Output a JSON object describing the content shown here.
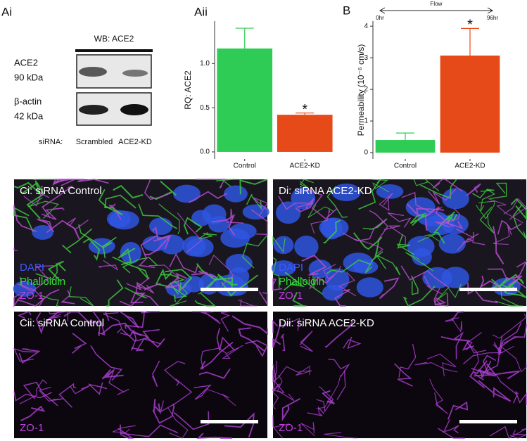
{
  "blot": {
    "panel": "Ai",
    "title": "WB: ACE2",
    "rows": [
      {
        "name": "ACE2",
        "size": "90 kDa"
      },
      {
        "name": "β-actin",
        "size": "42 kDa"
      }
    ],
    "lane_label": "siRNA:",
    "lanes": [
      "Scrambled",
      "ACE2-KD"
    ]
  },
  "chart_data": [
    {
      "type": "bar",
      "panel": "Aii",
      "ylabel": "RQ: ACE2",
      "categories": [
        "Control",
        "ACE2-KD"
      ],
      "values": [
        1.17,
        0.42
      ],
      "errors": [
        0.23,
        0.02
      ],
      "colors": [
        "#2ecc55",
        "#e64a19"
      ],
      "ylim": [
        -0.08,
        1.48
      ],
      "yticks": [
        {
          "value": 0,
          "label": "0.0"
        },
        {
          "value": 0.5,
          "label": "0.5"
        },
        {
          "value": 1,
          "label": "1.0"
        }
      ],
      "annotation": "*"
    },
    {
      "type": "bar",
      "panel": "B",
      "ylabel": "Permeability (10⁻⁶ cm/s)",
      "categories": [
        "Control",
        "ACE2-KD"
      ],
      "values": [
        0.4,
        3.07
      ],
      "errors": [
        0.22,
        0.86
      ],
      "colors": [
        "#2ecc55",
        "#e64a19"
      ],
      "ylim": [
        -0.2,
        4.16
      ],
      "yticks": [
        0,
        1,
        2,
        3,
        4
      ],
      "annotation": "*",
      "flow": {
        "label": "Flow",
        "start": "0hr",
        "end": "96hr"
      }
    }
  ],
  "micrographs": [
    {
      "title": "Ci: siRNA Control",
      "channels": [
        {
          "name": "DAPI",
          "color": "#3b5bff"
        },
        {
          "name": "Phalloidin",
          "color": "#33dd33"
        },
        {
          "name": "ZO-1",
          "color": "#c040e0"
        }
      ]
    },
    {
      "title": "Di: siRNA ACE2-KD",
      "channels": [
        {
          "name": "DAPI",
          "color": "#3b5bff"
        },
        {
          "name": "Phalloidin",
          "color": "#33dd33"
        },
        {
          "name": "ZO-1",
          "color": "#c040e0"
        }
      ]
    },
    {
      "title": "Cii: siRNA Control",
      "channels": [
        {
          "name": "ZO-1",
          "color": "#c040e0"
        }
      ]
    },
    {
      "title": "Dii: siRNA ACE2-KD",
      "channels": [
        {
          "name": "ZO-1",
          "color": "#c040e0"
        }
      ]
    }
  ]
}
